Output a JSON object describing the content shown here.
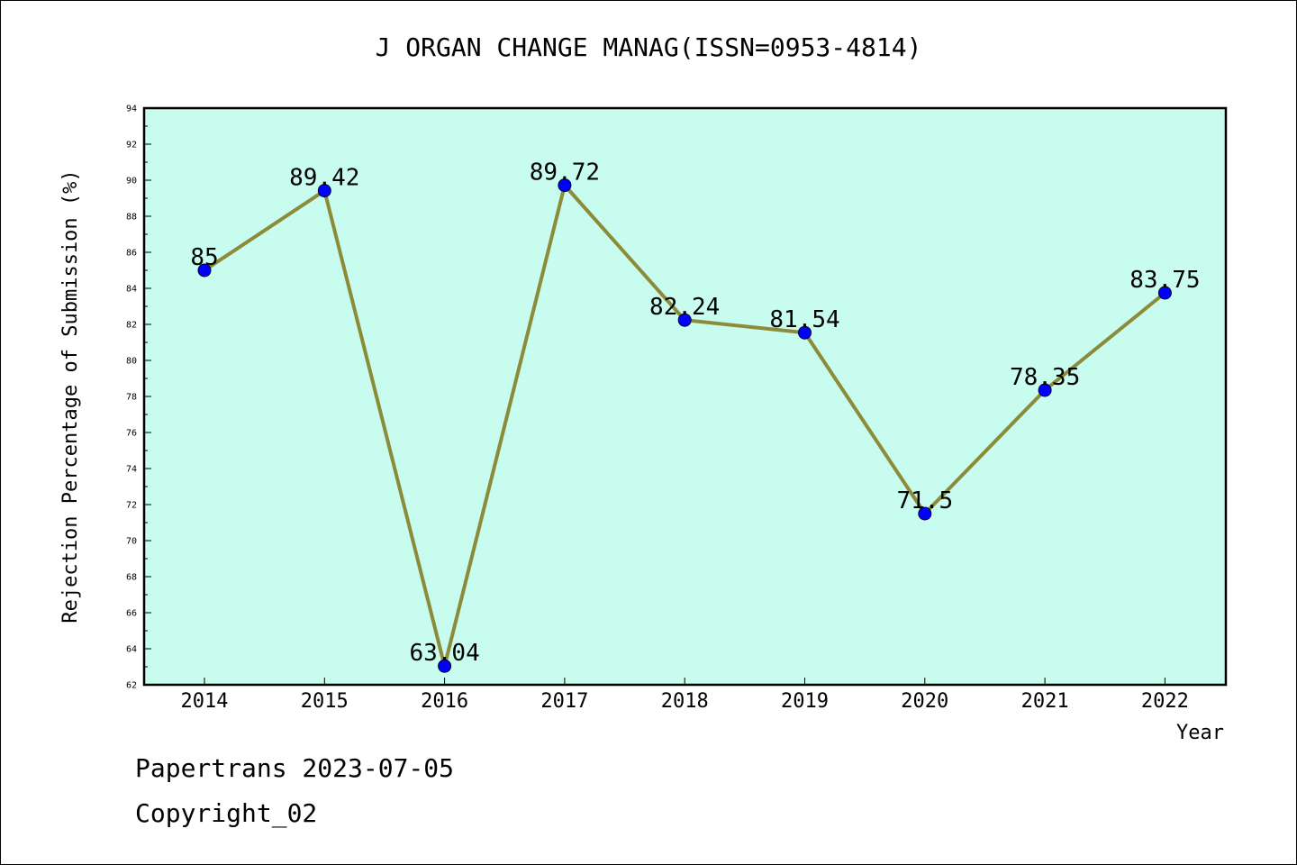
{
  "chart_data": {
    "type": "line",
    "title": "J ORGAN CHANGE MANAG(ISSN=0953-4814)",
    "xlabel": "Year",
    "ylabel": "Rejection Percentage of Submission (%)",
    "categories": [
      "2014",
      "2015",
      "2016",
      "2017",
      "2018",
      "2019",
      "2020",
      "2021",
      "2022"
    ],
    "values": [
      85,
      89.42,
      63.04,
      89.72,
      82.24,
      81.54,
      71.5,
      78.35,
      83.75
    ],
    "data_labels": [
      "85",
      "89.42",
      "63.04",
      "89.72",
      "82.24",
      "81.54",
      "71.5",
      "78.35",
      "83.75"
    ],
    "ylim": [
      62,
      94
    ],
    "y_ticks": [
      "62",
      "64",
      "66",
      "68",
      "70",
      "72",
      "74",
      "76",
      "78",
      "80",
      "82",
      "84",
      "86",
      "88",
      "90",
      "92",
      "94"
    ],
    "grid": false,
    "legend": "none"
  },
  "footer": {
    "date_line": "Papertrans 2023-07-05",
    "copyright_line": "Copyright_02"
  },
  "colors": {
    "plot_background": "#c8fcee",
    "line": "#8b8b3a",
    "marker": "#0000ff",
    "axis": "#000000"
  }
}
